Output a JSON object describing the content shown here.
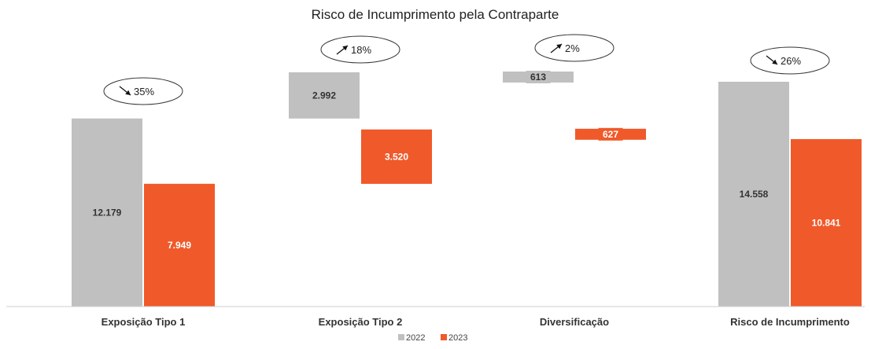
{
  "chart_data": {
    "type": "waterfall",
    "title": "Risco de Incumprimento pela Contraparte",
    "categories": [
      "Exposição Tipo 1",
      "Exposição Tipo 2",
      "Diversificação",
      "Risco de Incumprimento"
    ],
    "series": [
      {
        "name": "2022",
        "color": "#c0c0c0",
        "labels": [
          "12.179",
          "2.992",
          "613",
          "14.558"
        ],
        "values": [
          12179,
          2992,
          -613,
          14558
        ]
      },
      {
        "name": "2023",
        "color": "#f0592a",
        "labels": [
          "7.949",
          "3.520",
          "627",
          "10.841"
        ],
        "values": [
          7949,
          3520,
          -627,
          10841
        ]
      }
    ],
    "changes": [
      {
        "direction": "down",
        "pct": "35%"
      },
      {
        "direction": "up",
        "pct": "18%"
      },
      {
        "direction": "up",
        "pct": "2%"
      },
      {
        "direction": "down",
        "pct": "26%"
      }
    ],
    "legend_position": "bottom-center",
    "grid": false
  }
}
